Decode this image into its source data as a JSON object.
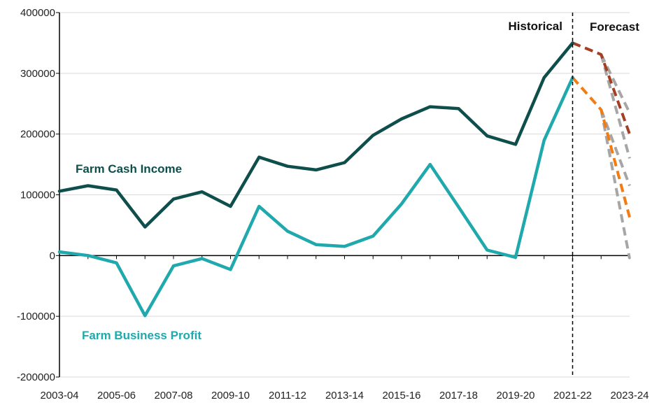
{
  "chart_data": {
    "type": "line",
    "title": "",
    "xlabel": "",
    "ylabel": "",
    "ylim": [
      -200000,
      400000
    ],
    "y_ticks": [
      -200000,
      -100000,
      0,
      100000,
      200000,
      300000,
      400000
    ],
    "y_tick_labels": [
      "-200000",
      "-100000",
      "0",
      "100000",
      "200000",
      "300000",
      "400000"
    ],
    "x_categories": [
      "2003-04",
      "2004-05",
      "2005-06",
      "2006-07",
      "2007-08",
      "2008-09",
      "2009-10",
      "2010-11",
      "2011-12",
      "2012-13",
      "2013-14",
      "2014-15",
      "2015-16",
      "2016-17",
      "2017-18",
      "2018-19",
      "2019-20",
      "2020-21",
      "2021-22",
      "2022-23",
      "2023-24"
    ],
    "x_tick_labels": [
      "2003-04",
      "2005-06",
      "2007-08",
      "2009-10",
      "2011-12",
      "2013-14",
      "2015-16",
      "2017-18",
      "2019-20",
      "2021-22",
      "2023-24"
    ],
    "divider_category": "2021-22",
    "grid": "horizontal",
    "series": [
      {
        "name": "Farm Cash Income",
        "color": "#0e4f4c",
        "style": "solid",
        "x": [
          "2003-04",
          "2004-05",
          "2005-06",
          "2006-07",
          "2007-08",
          "2008-09",
          "2009-10",
          "2010-11",
          "2011-12",
          "2012-13",
          "2013-14",
          "2014-15",
          "2015-16",
          "2016-17",
          "2017-18",
          "2018-19",
          "2019-20",
          "2020-21",
          "2021-22"
        ],
        "values": [
          106000,
          115000,
          108000,
          47000,
          93000,
          105000,
          81000,
          162000,
          147000,
          141000,
          153000,
          198000,
          225000,
          245000,
          242000,
          197000,
          183000,
          293000,
          350000
        ]
      },
      {
        "name": "Farm Business Profit",
        "color": "#1fa9ad",
        "style": "solid",
        "x": [
          "2003-04",
          "2004-05",
          "2005-06",
          "2006-07",
          "2007-08",
          "2008-09",
          "2009-10",
          "2010-11",
          "2011-12",
          "2012-13",
          "2013-14",
          "2014-15",
          "2015-16",
          "2016-17",
          "2017-18",
          "2018-19",
          "2019-20",
          "2020-21",
          "2021-22"
        ],
        "values": [
          6000,
          0,
          -12000,
          -99000,
          -17000,
          -5000,
          -23000,
          81000,
          40000,
          18000,
          15000,
          32000,
          85000,
          150000,
          80000,
          9000,
          -3000,
          190000,
          293000
        ]
      },
      {
        "name": "",
        "color": "#a33f24",
        "style": "dashed",
        "x": [
          "2021-22",
          "2022-23",
          "2023-24"
        ],
        "values": [
          350000,
          331000,
          200000
        ]
      },
      {
        "name": "",
        "color": "#f27b12",
        "style": "dashed",
        "x": [
          "2021-22",
          "2022-23",
          "2023-24"
        ],
        "values": [
          293000,
          240000,
          63000
        ]
      },
      {
        "name": "",
        "color": "#a6a6a6",
        "style": "dashed",
        "x": [
          "2022-23",
          "2023-24"
        ],
        "values": [
          331000,
          235000
        ]
      },
      {
        "name": "",
        "color": "#a6a6a6",
        "style": "dashed",
        "x": [
          "2022-23",
          "2023-24"
        ],
        "values": [
          331000,
          160000
        ]
      },
      {
        "name": "",
        "color": "#a6a6a6",
        "style": "dashed",
        "x": [
          "2022-23",
          "2023-24"
        ],
        "values": [
          240000,
          115000
        ]
      },
      {
        "name": "",
        "color": "#a6a6a6",
        "style": "dashed",
        "x": [
          "2022-23",
          "2023-24"
        ],
        "values": [
          240000,
          -5000
        ]
      }
    ],
    "annotations": {
      "historical": "Historical",
      "forecast": "Forecast",
      "farm_cash_income": "Farm Cash Income",
      "farm_business_profit": "Farm Business Profit"
    }
  }
}
